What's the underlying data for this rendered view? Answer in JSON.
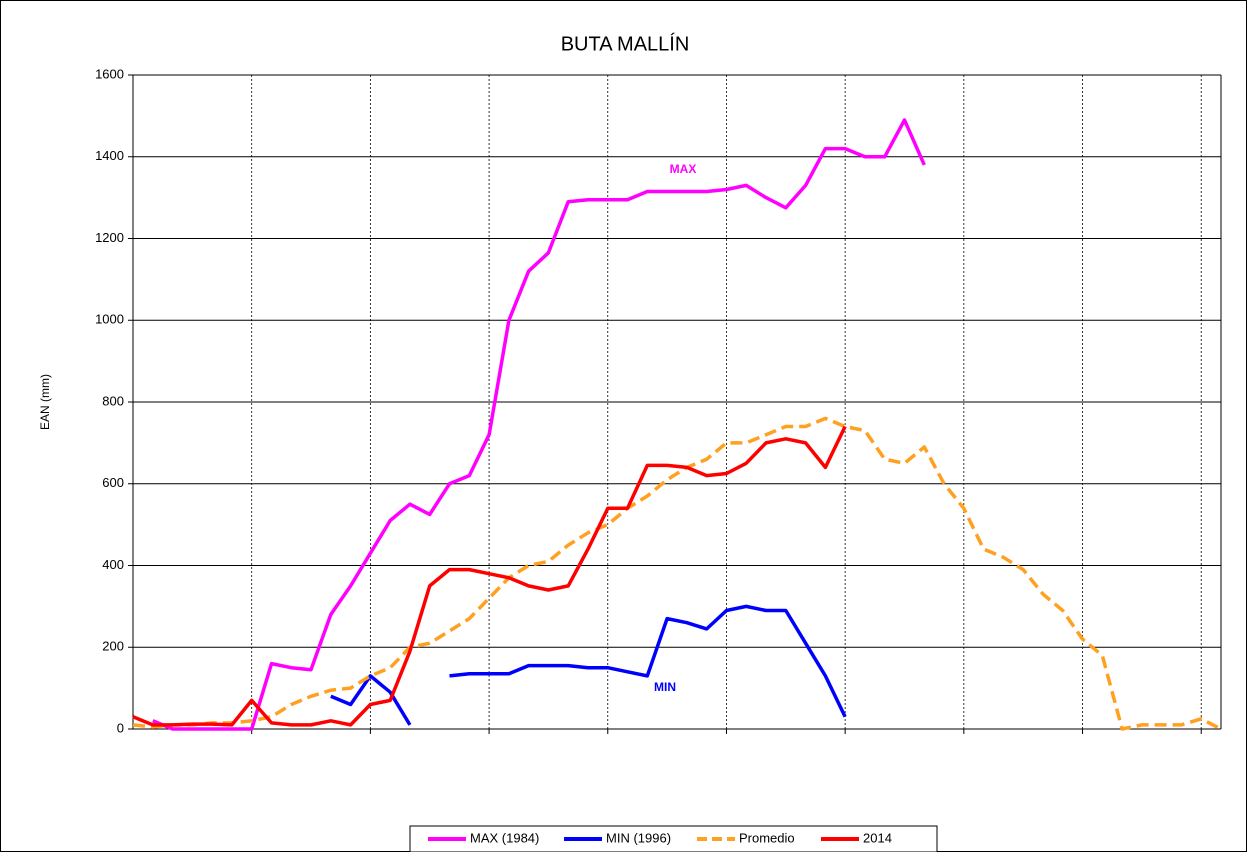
{
  "chart_data": {
    "type": "line",
    "title": "BUTA MALLÍN",
    "ylabel": "EAN (mm)",
    "x": [
      0,
      5,
      10,
      15,
      20,
      25,
      30,
      35,
      40,
      45,
      50,
      55,
      60,
      65,
      70,
      75,
      80,
      85,
      90,
      95,
      100,
      105,
      110,
      115,
      120,
      125,
      130,
      135,
      140,
      145,
      150,
      155,
      160,
      165,
      170,
      175,
      180,
      185,
      190,
      195,
      200,
      205,
      210,
      215,
      220,
      225,
      230,
      235,
      240,
      245,
      250,
      255,
      260,
      265,
      270,
      275
    ],
    "xlim": [
      0,
      275
    ],
    "xticks": [
      30,
      60,
      90,
      120,
      150,
      180,
      210,
      240,
      270
    ],
    "ylim": [
      0,
      1600
    ],
    "yticks": [
      0,
      200,
      400,
      600,
      800,
      1000,
      1200,
      1400,
      1600
    ],
    "grid": true,
    "legend": "bottom",
    "series": [
      {
        "name": "MAX (1984)",
        "color": "#ff00ff",
        "style": "solid",
        "values": [
          null,
          20,
          0,
          0,
          0,
          0,
          0,
          160,
          150,
          145,
          280,
          350,
          430,
          510,
          550,
          525,
          600,
          620,
          720,
          1000,
          1120,
          1165,
          1290,
          1295,
          1295,
          1295,
          1315,
          1315,
          1315,
          1315,
          1320,
          1330,
          1300,
          1275,
          1330,
          1420,
          1420,
          1400,
          1400,
          1490,
          1380,
          null,
          null,
          null,
          null,
          null,
          null,
          null,
          null,
          null,
          null,
          null,
          null,
          null,
          null,
          null
        ]
      },
      {
        "name": "MIN (1996)",
        "color": "#0000ff",
        "style": "solid",
        "values": [
          null,
          null,
          null,
          null,
          null,
          null,
          null,
          null,
          null,
          null,
          80,
          60,
          130,
          90,
          10,
          null,
          130,
          135,
          135,
          135,
          155,
          155,
          155,
          150,
          150,
          140,
          130,
          270,
          260,
          245,
          290,
          300,
          290,
          290,
          210,
          130,
          30,
          null,
          null,
          null,
          null,
          null,
          null,
          null,
          null,
          null,
          null,
          null,
          null,
          null,
          null,
          null,
          null,
          null,
          null,
          null
        ]
      },
      {
        "name": "Promedio",
        "color": "#ffa020",
        "style": "dashed",
        "values": [
          10,
          5,
          10,
          10,
          15,
          15,
          20,
          30,
          60,
          80,
          95,
          100,
          130,
          150,
          200,
          210,
          240,
          270,
          320,
          370,
          400,
          410,
          450,
          480,
          500,
          540,
          570,
          610,
          640,
          660,
          700,
          700,
          720,
          740,
          740,
          760,
          740,
          730,
          660,
          650,
          690,
          600,
          540,
          440,
          420,
          390,
          330,
          290,
          220,
          180,
          0,
          10,
          10,
          10,
          25,
          0
        ]
      },
      {
        "name": "2014",
        "color": "#ff0000",
        "style": "solid",
        "values": [
          30,
          10,
          10,
          12,
          12,
          10,
          70,
          15,
          10,
          10,
          20,
          10,
          60,
          70,
          190,
          350,
          390,
          390,
          380,
          370,
          350,
          340,
          350,
          440,
          540,
          540,
          645,
          645,
          640,
          620,
          625,
          650,
          700,
          710,
          700,
          640,
          740,
          null,
          null,
          null,
          null,
          null,
          null,
          null,
          null,
          null,
          null,
          null,
          null,
          null,
          null,
          null,
          null,
          null,
          null,
          null
        ]
      }
    ],
    "annotations": [
      "MAX",
      "MIN"
    ]
  }
}
